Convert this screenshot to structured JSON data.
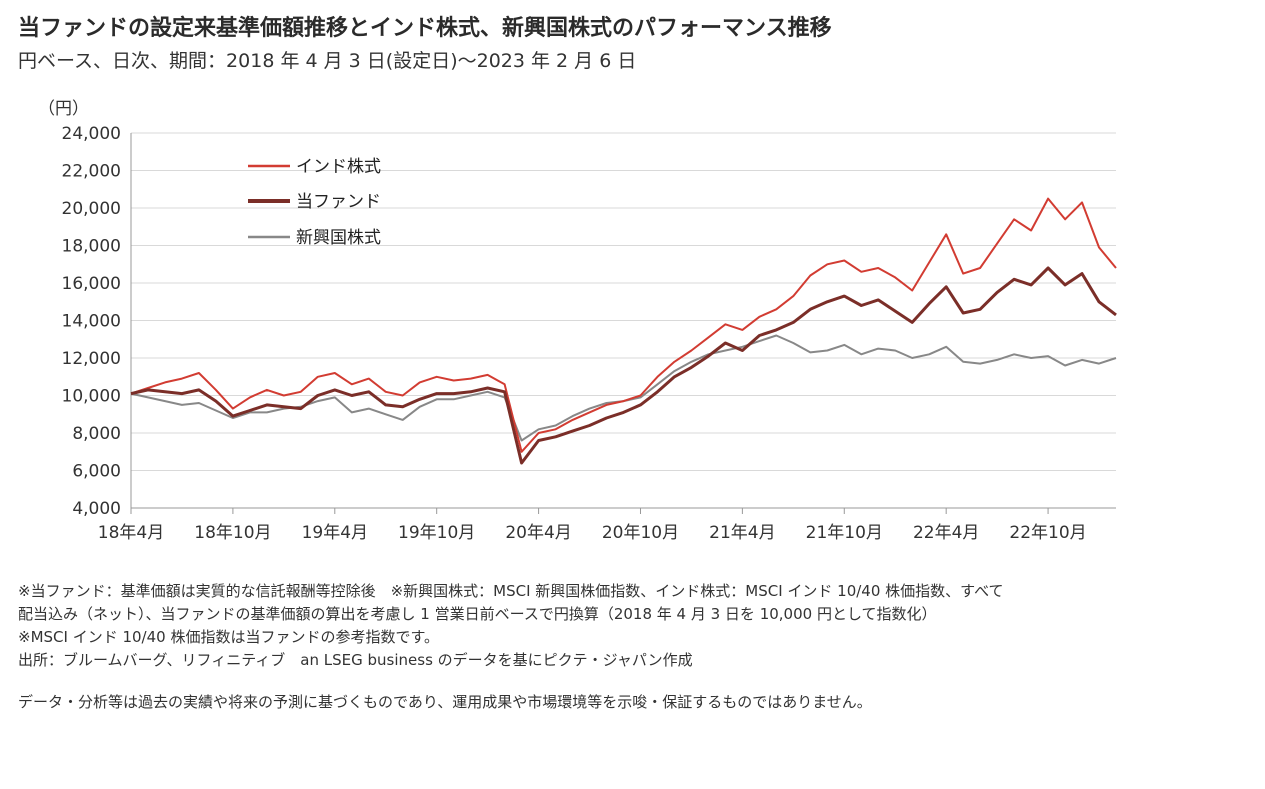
{
  "title": "当ファンドの設定来基準価額推移とインド株式、新興国株式のパフォーマンス推移",
  "subtitle": "円ベース、日次、期間：2018 年 4 月 3 日(設定日)～2023 年 2 月 6 日",
  "notes": [
    "※当ファンド：基準価額は実質的な信託報酬等控除後　※新興国株式：MSCI 新興国株価指数、インド株式：MSCI インド 10/40 株価指数、すべて",
    "配当込み（ネット）、当ファンドの基準価額の算出を考慮し 1 営業日前ベースで円換算（2018 年 4 月 3 日を 10,000 円として指数化）",
    "※MSCI インド 10/40 株価指数は当ファンドの参考指数です。",
    "出所：ブルームバーグ、リフィニティブ　an LSEG business のデータを基にピクテ・ジャパン作成"
  ],
  "disclaimer": "データ・分析等は過去の実績や将来の予測に基づくものであり、運用成果や市場環境等を示唆・保証するものではありません。",
  "chart_data": {
    "type": "line",
    "ylabel": "（円）",
    "ylim": [
      4000,
      24000
    ],
    "yticks": [
      "4,000",
      "6,000",
      "8,000",
      "10,000",
      "12,000",
      "14,000",
      "16,000",
      "18,000",
      "20,000",
      "22,000",
      "24,000"
    ],
    "ytick_values": [
      4000,
      6000,
      8000,
      10000,
      12000,
      14000,
      16000,
      18000,
      20000,
      22000,
      24000
    ],
    "xlabels": [
      "18年4月",
      "18年10月",
      "19年4月",
      "19年10月",
      "20年4月",
      "20年10月",
      "21年4月",
      "21年10月",
      "22年4月",
      "22年10月"
    ],
    "x_start": "2018-04",
    "x_end": "2023-02",
    "grid": true,
    "legend_position": "top-left",
    "series": [
      {
        "name": "インド株式",
        "color": "#d23c32",
        "x": [
          "2018-04",
          "2018-05",
          "2018-06",
          "2018-07",
          "2018-08",
          "2018-09",
          "2018-10",
          "2018-11",
          "2018-12",
          "2019-01",
          "2019-02",
          "2019-03",
          "2019-04",
          "2019-05",
          "2019-06",
          "2019-07",
          "2019-08",
          "2019-09",
          "2019-10",
          "2019-11",
          "2019-12",
          "2020-01",
          "2020-02",
          "2020-03",
          "2020-04",
          "2020-05",
          "2020-06",
          "2020-07",
          "2020-08",
          "2020-09",
          "2020-10",
          "2020-11",
          "2020-12",
          "2021-01",
          "2021-02",
          "2021-03",
          "2021-04",
          "2021-05",
          "2021-06",
          "2021-07",
          "2021-08",
          "2021-09",
          "2021-10",
          "2021-11",
          "2021-12",
          "2022-01",
          "2022-02",
          "2022-03",
          "2022-04",
          "2022-05",
          "2022-06",
          "2022-07",
          "2022-08",
          "2022-09",
          "2022-10",
          "2022-11",
          "2022-12",
          "2023-01",
          "2023-02"
        ],
        "values": [
          10100,
          10400,
          10700,
          10900,
          11200,
          10300,
          9300,
          9900,
          10300,
          10000,
          10200,
          11000,
          11200,
          10600,
          10900,
          10200,
          10000,
          10700,
          11000,
          10800,
          10900,
          11100,
          10600,
          7000,
          8000,
          8200,
          8700,
          9100,
          9500,
          9700,
          10000,
          11000,
          11800,
          12400,
          13100,
          13800,
          13500,
          14200,
          14600,
          15300,
          16400,
          17000,
          17200,
          16600,
          16800,
          16300,
          15600,
          17100,
          18600,
          16500,
          16800,
          18100,
          19400,
          18800,
          20500,
          19400,
          20300,
          17900,
          16800
        ]
      },
      {
        "name": "当ファンド",
        "color": "#7b2e28",
        "x": [
          "2018-04",
          "2018-05",
          "2018-06",
          "2018-07",
          "2018-08",
          "2018-09",
          "2018-10",
          "2018-11",
          "2018-12",
          "2019-01",
          "2019-02",
          "2019-03",
          "2019-04",
          "2019-05",
          "2019-06",
          "2019-07",
          "2019-08",
          "2019-09",
          "2019-10",
          "2019-11",
          "2019-12",
          "2020-01",
          "2020-02",
          "2020-03",
          "2020-04",
          "2020-05",
          "2020-06",
          "2020-07",
          "2020-08",
          "2020-09",
          "2020-10",
          "2020-11",
          "2020-12",
          "2021-01",
          "2021-02",
          "2021-03",
          "2021-04",
          "2021-05",
          "2021-06",
          "2021-07",
          "2021-08",
          "2021-09",
          "2021-10",
          "2021-11",
          "2021-12",
          "2022-01",
          "2022-02",
          "2022-03",
          "2022-04",
          "2022-05",
          "2022-06",
          "2022-07",
          "2022-08",
          "2022-09",
          "2022-10",
          "2022-11",
          "2022-12",
          "2023-01",
          "2023-02"
        ],
        "values": [
          10100,
          10300,
          10200,
          10100,
          10300,
          9700,
          8900,
          9200,
          9500,
          9400,
          9300,
          10000,
          10300,
          10000,
          10200,
          9500,
          9400,
          9800,
          10100,
          10100,
          10200,
          10400,
          10200,
          6400,
          7600,
          7800,
          8100,
          8400,
          8800,
          9100,
          9500,
          10200,
          11000,
          11500,
          12100,
          12800,
          12400,
          13200,
          13500,
          13900,
          14600,
          15000,
          15300,
          14800,
          15100,
          14500,
          13900,
          14900,
          15800,
          14400,
          14600,
          15500,
          16200,
          15900,
          16800,
          15900,
          16500,
          15000,
          14300
        ]
      },
      {
        "name": "新興国株式",
        "color": "#888888",
        "x": [
          "2018-04",
          "2018-05",
          "2018-06",
          "2018-07",
          "2018-08",
          "2018-09",
          "2018-10",
          "2018-11",
          "2018-12",
          "2019-01",
          "2019-02",
          "2019-03",
          "2019-04",
          "2019-05",
          "2019-06",
          "2019-07",
          "2019-08",
          "2019-09",
          "2019-10",
          "2019-11",
          "2019-12",
          "2020-01",
          "2020-02",
          "2020-03",
          "2020-04",
          "2020-05",
          "2020-06",
          "2020-07",
          "2020-08",
          "2020-09",
          "2020-10",
          "2020-11",
          "2020-12",
          "2021-01",
          "2021-02",
          "2021-03",
          "2021-04",
          "2021-05",
          "2021-06",
          "2021-07",
          "2021-08",
          "2021-09",
          "2021-10",
          "2021-11",
          "2021-12",
          "2022-01",
          "2022-02",
          "2022-03",
          "2022-04",
          "2022-05",
          "2022-06",
          "2022-07",
          "2022-08",
          "2022-09",
          "2022-10",
          "2022-11",
          "2022-12",
          "2023-01",
          "2023-02"
        ],
        "values": [
          10100,
          9900,
          9700,
          9500,
          9600,
          9200,
          8800,
          9100,
          9100,
          9300,
          9400,
          9700,
          9900,
          9100,
          9300,
          9000,
          8700,
          9400,
          9800,
          9800,
          10000,
          10200,
          9900,
          7600,
          8200,
          8400,
          8900,
          9300,
          9600,
          9700,
          9900,
          10600,
          11300,
          11800,
          12200,
          12400,
          12600,
          12900,
          13200,
          12800,
          12300,
          12400,
          12700,
          12200,
          12500,
          12400,
          12000,
          12200,
          12600,
          11800,
          11700,
          11900,
          12200,
          12000,
          12100,
          11600,
          11900,
          11700,
          12000
        ]
      }
    ]
  }
}
